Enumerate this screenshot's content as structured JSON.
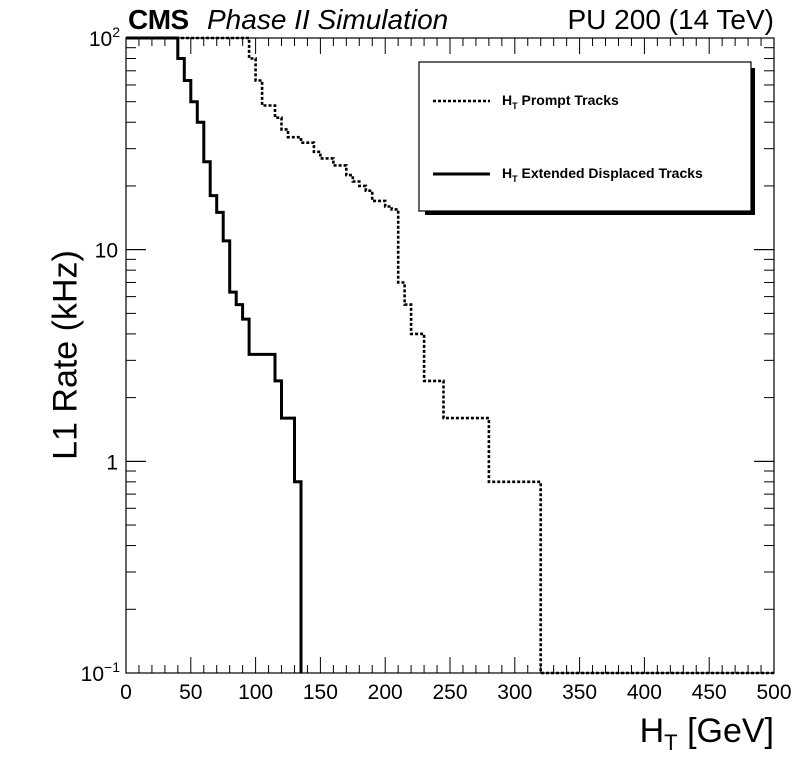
{
  "header": {
    "cms": "CMS",
    "subtitle": "Phase II Simulation",
    "conditions": "PU 200 (14 TeV)"
  },
  "chart_data": {
    "type": "line",
    "step": true,
    "xlabel_main": "H",
    "xlabel_sub": "T",
    "xlabel_unit": "[GeV]",
    "ylabel": "L1 Rate (kHz)",
    "xlim": [
      0,
      500
    ],
    "ylim": [
      0.1,
      100
    ],
    "yscale": "log",
    "x_ticks": [
      0,
      50,
      100,
      150,
      200,
      250,
      300,
      350,
      400,
      450,
      500
    ],
    "y_ticks": [
      {
        "value": 100,
        "base": "10",
        "exp": "2"
      },
      {
        "value": 10,
        "label": "10"
      },
      {
        "value": 1,
        "label": "1"
      },
      {
        "value": 0.1,
        "base": "10",
        "exp": "−1"
      }
    ],
    "legend_position": "top-right",
    "series": [
      {
        "name_main": "H",
        "name_sub": "T",
        "name_rest": "Prompt Tracks",
        "style": "dotted",
        "points": [
          [
            0,
            100
          ],
          [
            90,
            100
          ],
          [
            95,
            80
          ],
          [
            100,
            63
          ],
          [
            105,
            48
          ],
          [
            115,
            42
          ],
          [
            120,
            37
          ],
          [
            125,
            34
          ],
          [
            135,
            32
          ],
          [
            145,
            29
          ],
          [
            150,
            27
          ],
          [
            160,
            25
          ],
          [
            170,
            22.5
          ],
          [
            175,
            21
          ],
          [
            180,
            20
          ],
          [
            185,
            19
          ],
          [
            190,
            17
          ],
          [
            200,
            16
          ],
          [
            205,
            15.5
          ],
          [
            210,
            7
          ],
          [
            215,
            5.5
          ],
          [
            220,
            4
          ],
          [
            230,
            2.4
          ],
          [
            245,
            1.6
          ],
          [
            280,
            0.8
          ],
          [
            320,
            0.1
          ],
          [
            500,
            0.1
          ]
        ]
      },
      {
        "name_main": "H",
        "name_sub": "T",
        "name_rest": "Extended Displaced Tracks",
        "style": "solid",
        "points": [
          [
            0,
            100
          ],
          [
            35,
            100
          ],
          [
            40,
            80
          ],
          [
            45,
            63
          ],
          [
            50,
            50
          ],
          [
            55,
            40
          ],
          [
            60,
            26
          ],
          [
            65,
            18
          ],
          [
            70,
            15
          ],
          [
            75,
            11
          ],
          [
            80,
            6.3
          ],
          [
            85,
            5.5
          ],
          [
            90,
            4.7
          ],
          [
            95,
            3.2
          ],
          [
            110,
            3.2
          ],
          [
            115,
            2.4
          ],
          [
            120,
            1.6
          ],
          [
            130,
            0.8
          ],
          [
            135,
            0.1
          ]
        ]
      }
    ]
  }
}
